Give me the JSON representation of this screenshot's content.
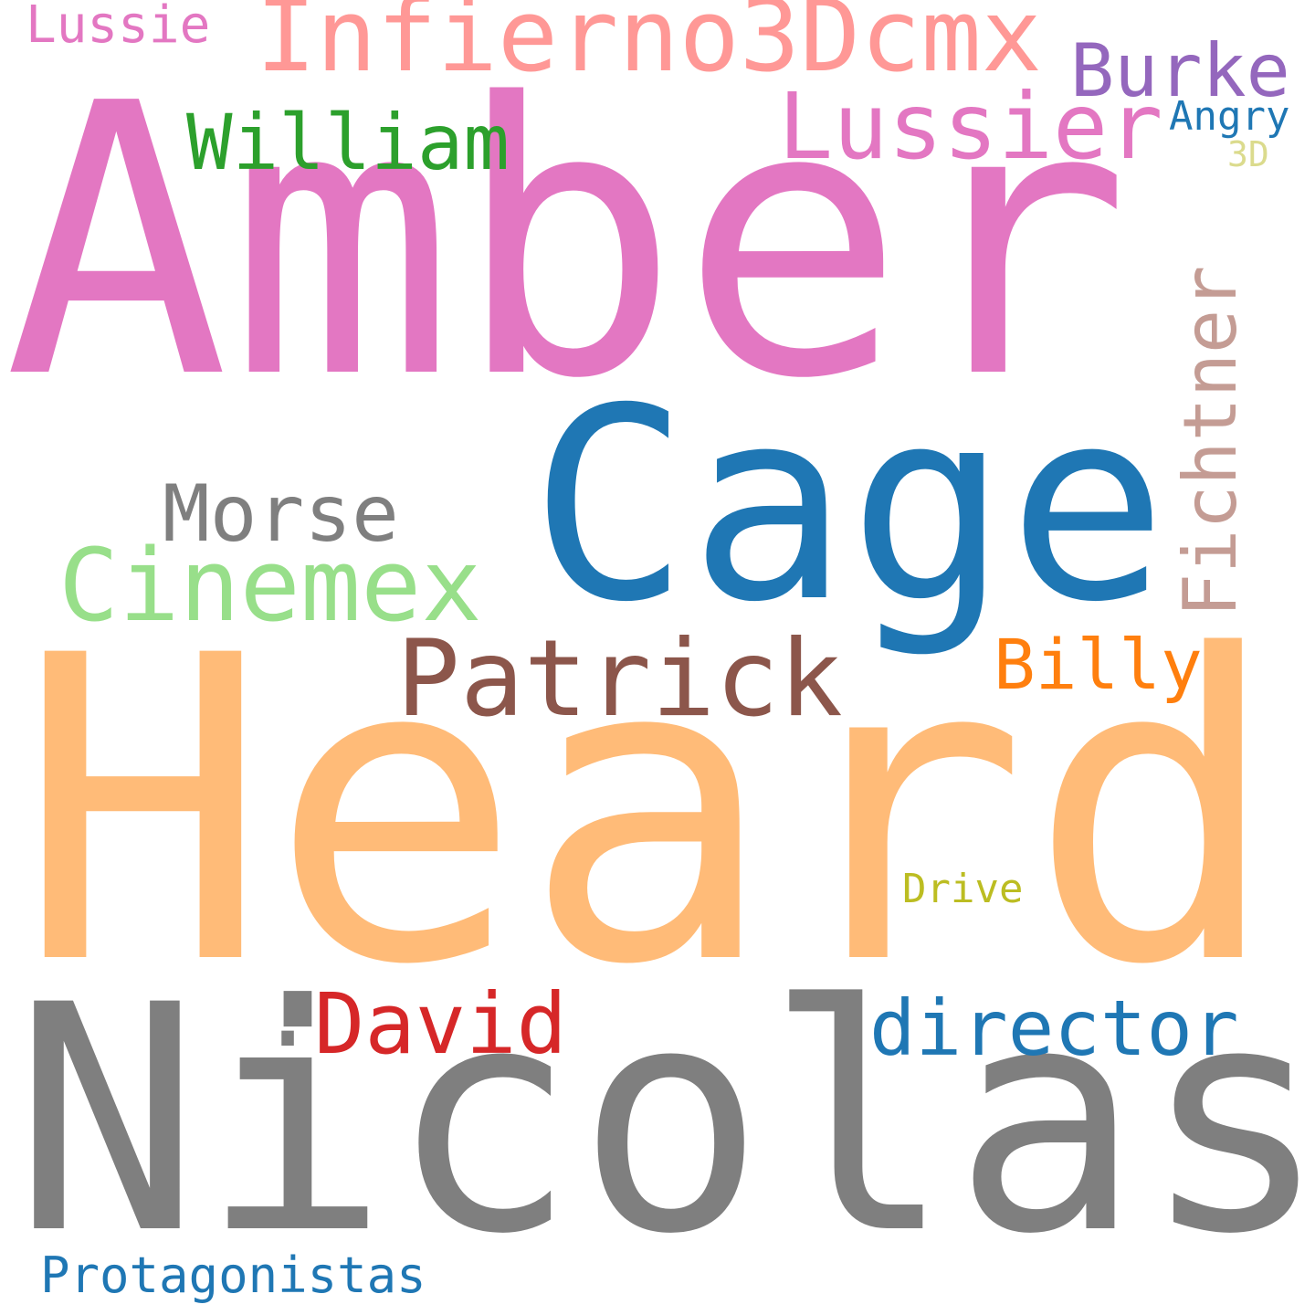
{
  "words": {
    "amber": {
      "text": "Amber",
      "color": "#e377c2",
      "size": 410
    },
    "heard": {
      "text": "Heard",
      "color": "#ffbb78",
      "size": 460
    },
    "nicolas": {
      "text": "Nicolas",
      "color": "#7f7f7f",
      "size": 342
    },
    "cage": {
      "text": "Cage",
      "color": "#1f77b4",
      "size": 290
    },
    "infierno": {
      "text": "Infierno3Dcmx",
      "color": "#ff9896",
      "size": 110
    },
    "lussier": {
      "text": "Lussier",
      "color": "#e377c2",
      "size": 100
    },
    "burke": {
      "text": "Burke",
      "color": "#9467bd",
      "size": 80
    },
    "lussie": {
      "text": "Lussie",
      "color": "#e377c2",
      "size": 56
    },
    "william": {
      "text": "William",
      "color": "#2ca02c",
      "size": 84
    },
    "angry": {
      "text": "Angry",
      "color": "#1f77b4",
      "size": 44
    },
    "threed": {
      "text": "3D",
      "color": "#dbdb8d",
      "size": 38
    },
    "fichtner": {
      "text": "Fichtner",
      "color": "#c49c94",
      "size": 80
    },
    "morse": {
      "text": "Morse",
      "color": "#7f7f7f",
      "size": 86
    },
    "cinemex": {
      "text": "Cinemex",
      "color": "#98df8a",
      "size": 110
    },
    "patrick": {
      "text": "Patrick",
      "color": "#8c564b",
      "size": 116
    },
    "billy": {
      "text": "Billy",
      "color": "#ff7f0e",
      "size": 76
    },
    "drive": {
      "text": "Drive",
      "color": "#bcbd22",
      "size": 44
    },
    "dot": {
      "text": ".",
      "color": "#7f7f7f",
      "size": 110
    },
    "david": {
      "text": "David",
      "color": "#d62728",
      "size": 92
    },
    "director": {
      "text": "director",
      "color": "#1f77b4",
      "size": 84
    },
    "protag": {
      "text": "Protagonistas",
      "color": "#1f77b4",
      "size": 54
    }
  }
}
